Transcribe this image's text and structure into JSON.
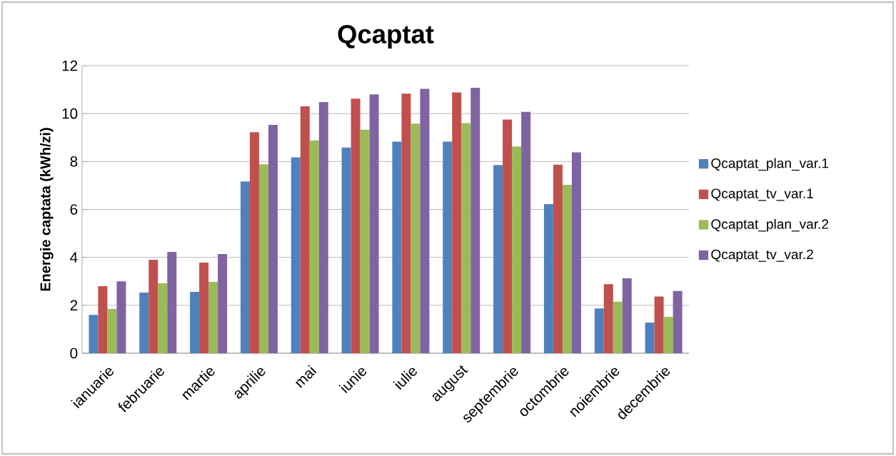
{
  "chart_data": {
    "type": "bar",
    "title": "Qcaptat",
    "ylabel": "Energie captata (kWh/zi)",
    "categories": [
      "ianuarie",
      "februarie",
      "martie",
      "aprilie",
      "mai",
      "iunie",
      "iulie",
      "august",
      "septembrie",
      "octombrie",
      "noiembrie",
      "decembrie"
    ],
    "series": [
      {
        "name": "Qcaptat_plan_var.1",
        "color": "#4f81bd",
        "values": [
          1.6,
          2.53,
          2.56,
          7.17,
          8.17,
          8.58,
          8.83,
          8.83,
          7.85,
          6.22,
          1.87,
          1.28
        ]
      },
      {
        "name": "Qcaptat_tv_var.1",
        "color": "#c0504d",
        "values": [
          2.8,
          3.9,
          3.78,
          9.22,
          10.3,
          10.62,
          10.83,
          10.88,
          9.75,
          7.87,
          2.88,
          2.37
        ]
      },
      {
        "name": "Qcaptat_plan_var.2",
        "color": "#9bbb59",
        "values": [
          1.85,
          2.92,
          2.98,
          7.88,
          8.88,
          9.33,
          9.58,
          9.6,
          8.63,
          7.03,
          2.15,
          1.52
        ]
      },
      {
        "name": "Qcaptat_tv_var.2",
        "color": "#8064a2",
        "values": [
          3.0,
          4.23,
          4.14,
          9.53,
          10.48,
          10.8,
          11.03,
          11.08,
          10.07,
          8.38,
          3.13,
          2.6
        ]
      }
    ],
    "ylim": [
      0,
      12
    ],
    "yticks": [
      0,
      2,
      4,
      6,
      8,
      10,
      12
    ],
    "grid": "y",
    "legend": "right"
  }
}
